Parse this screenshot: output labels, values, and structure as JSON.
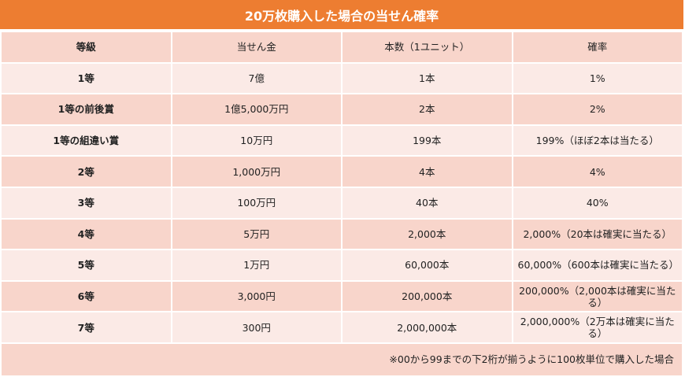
{
  "title": "20万枚購入した場合の当せん確率",
  "colors": {
    "title_bg": "#ED7D31",
    "row_dark": "#F8D5CB",
    "row_light": "#FBEAE6"
  },
  "headers": [
    "等級",
    "当せん金",
    "本数（1ユニット）",
    "確率"
  ],
  "rows": [
    [
      "1等",
      "7億",
      "1本",
      "1%"
    ],
    [
      "1等の前後賞",
      "1億5,000万円",
      "2本",
      "2%"
    ],
    [
      "1等の組違い賞",
      "10万円",
      "199本",
      "199%（ほぼ2本は当たる）"
    ],
    [
      "2等",
      "1,000万円",
      "4本",
      "4%"
    ],
    [
      "3等",
      "100万円",
      "40本",
      "40%"
    ],
    [
      "4等",
      "5万円",
      "2,000本",
      "2,000%（20本は確実に当たる）"
    ],
    [
      "5等",
      "1万円",
      "60,000本",
      "60,000%（600本は確実に当たる）"
    ],
    [
      "6等",
      "3,000円",
      "200,000本",
      "200,000%（2,000本は確実に当たる）"
    ],
    [
      "7等",
      "300円",
      "2,000,000本",
      "2,000,000%（2万本は確実に当たる）"
    ]
  ],
  "footnote": "※00から99までの下2桁が揃うように100枚単位で購入した場合"
}
